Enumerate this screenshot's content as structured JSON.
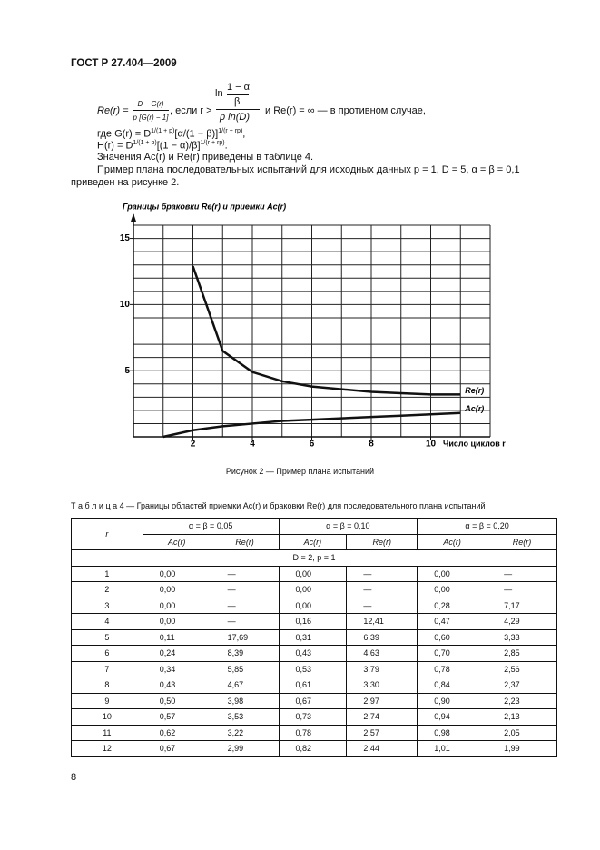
{
  "header": {
    "title": "ГОСТ Р 27.404—2009"
  },
  "formula": {
    "lhs": "Re(r) =",
    "frac1": {
      "num": "D − G(r)",
      "den": "p [G(r) − 1]"
    },
    "cond": ", если r >",
    "ln": "ln",
    "frac2": {
      "num": "1 − α",
      "den": "β"
    },
    "frac3_den": "p ln(D)",
    "rest": "и Re(r) = ∞ — в противном случае,"
  },
  "definitions": [
    [
      "где G(r) = D",
      "1/(1 + p)",
      "[α/(1 − β)]",
      "1/(r + rp)",
      ","
    ],
    [
      "H(r) = D",
      "1/(1 + p)",
      "[(1 − α)/β]",
      "1/(r + rp)",
      "."
    ]
  ],
  "paragraphs": [
    "Значения Ac(r) и Re(r) приведены в таблице 4.",
    "Пример плана последовательных испытаний для исходных данных p = 1, D = 5, α = β = 0,1 приведен на рисунке 2."
  ],
  "chart_data": {
    "type": "line",
    "y_label": "Границы браковки Re(r) и приемки Ac(r)",
    "x_label": "Число циклов r",
    "x": [
      1,
      2,
      3,
      4,
      5,
      6,
      7,
      8,
      9,
      10,
      11
    ],
    "series": [
      {
        "name": "Re(r)",
        "color": "#111111",
        "values": [
          null,
          12.9,
          6.5,
          4.9,
          4.2,
          3.8,
          3.6,
          3.4,
          3.3,
          3.2,
          3.2
        ]
      },
      {
        "name": "Ac(r)",
        "color": "#111111",
        "values": [
          0,
          0.5,
          0.8,
          1.0,
          1.2,
          1.3,
          1.4,
          1.5,
          1.6,
          1.7,
          1.8
        ]
      }
    ],
    "xlim": [
      0,
      12
    ],
    "ylim": [
      0,
      16
    ],
    "xticks": [
      2,
      4,
      6,
      8,
      10
    ],
    "yticks": [
      5,
      10,
      15
    ],
    "grid": true,
    "caption": "Рисунок 2 — Пример плана испытаний"
  },
  "table": {
    "title": "Т а б л и ц а 4 — Границы областей приемки Ac(r) и браковки Re(r) для последовательного плана испытаний",
    "header": {
      "r": "r",
      "groups": [
        "α = β = 0,05",
        "α = β = 0,10",
        "α = β = 0,20"
      ],
      "sub": [
        "Ac(r)",
        "Re(r)",
        "Ac(r)",
        "Re(r)",
        "Ac(r)",
        "Re(r)"
      ]
    },
    "section": "D = 2, p = 1",
    "rows": [
      [
        "1",
        "0,00",
        "—",
        "0,00",
        "—",
        "0,00",
        "—"
      ],
      [
        "2",
        "0,00",
        "—",
        "0,00",
        "—",
        "0,00",
        "—"
      ],
      [
        "3",
        "0,00",
        "—",
        "0,00",
        "—",
        "0,28",
        "7,17"
      ],
      [
        "4",
        "0,00",
        "—",
        "0,16",
        "12,41",
        "0,47",
        "4,29"
      ],
      [
        "5",
        "0,11",
        "17,69",
        "0,31",
        "6,39",
        "0,60",
        "3,33"
      ],
      [
        "6",
        "0,24",
        "8,39",
        "0,43",
        "4,63",
        "0,70",
        "2,85"
      ],
      [
        "7",
        "0,34",
        "5,85",
        "0,53",
        "3,79",
        "0,78",
        "2,56"
      ],
      [
        "8",
        "0,43",
        "4,67",
        "0,61",
        "3,30",
        "0,84",
        "2,37"
      ],
      [
        "9",
        "0,50",
        "3,98",
        "0,67",
        "2,97",
        "0,90",
        "2,23"
      ],
      [
        "10",
        "0,57",
        "3,53",
        "0,73",
        "2,74",
        "0,94",
        "2,13"
      ],
      [
        "11",
        "0,62",
        "3,22",
        "0,78",
        "2,57",
        "0,98",
        "2,05"
      ],
      [
        "12",
        "0,67",
        "2,99",
        "0,82",
        "2,44",
        "1,01",
        "1,99"
      ]
    ]
  },
  "page_number": "8"
}
